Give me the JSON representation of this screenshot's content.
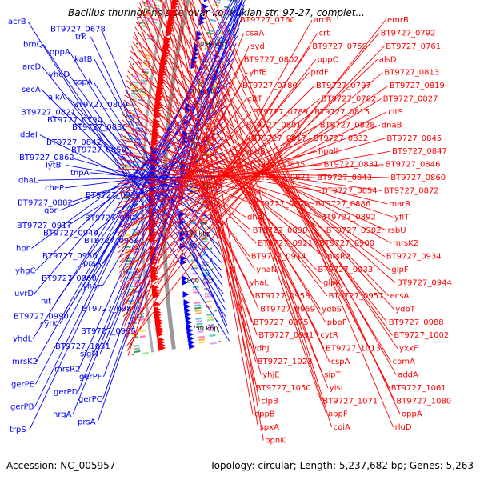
{
  "header": {
    "title": "Bacillus thuringiensis serovar konkukian str. 97-27, complet..."
  },
  "footer": {
    "accession": "Accession: NC_005957",
    "stats": "Topology: circular; Length: 5,237,682 bp; Genes: 5,263"
  },
  "colors": {
    "forward_strand": "#ff0000",
    "reverse_strand": "#0000ff",
    "backbone": "#999999",
    "tick_dots": "#2f8f2f"
  },
  "ticks": [
    "750 kbp",
    "800 kbp",
    "850 kbp",
    "900 kbp",
    "950 kbp",
    "1000 kbp",
    "1050 kbp",
    "1100 kbp",
    "1150 kbp"
  ],
  "left_labels": [
    "acrB",
    "BT9727_0678",
    "trk",
    "brnQ",
    "oppA",
    "katB",
    "arcD",
    "yheD",
    "sspA",
    "secA",
    "alkA",
    "BT9727_0809",
    "BT9727_0821",
    "BT9727_0790",
    "BT9727_0836",
    "ddeI",
    "BT9727_0842",
    "BT9727_0850",
    "BT9727_0862",
    "lytB",
    "tnpA",
    "dhaL",
    "cheP",
    "BT9727_0930",
    "BT9727_0882",
    "qor",
    "BT9727_0905",
    "BT9727_0917",
    "BT9727_0949",
    "BT9727_0952",
    "hpr",
    "BT9727_0956",
    "prsA",
    "yhgC",
    "BT9727_0960",
    "yhaH",
    "uvrD",
    "hit",
    "BT9727_0987",
    "BT9727_0990",
    "cytK",
    "BT9727_0995",
    "yhdL",
    "BT9727_1031",
    "sigM",
    "mrsK2",
    "mrsR2",
    "gerPF",
    "gerPE",
    "gerPD",
    "gerPC",
    "gerPB",
    "nrgA",
    "prsA",
    "trpS"
  ],
  "right_labels": [
    "BT9727_0760",
    "arcB",
    "emrB",
    "csaA",
    "crt",
    "BT9727_0792",
    "syd",
    "BT9727_0759",
    "BT9727_0761",
    "BT9727_0802",
    "oppC",
    "alsD",
    "yhfE",
    "prdF",
    "BT9727_0813",
    "BT9727_0780",
    "BT9727_0797",
    "BT9727_0819",
    "citT",
    "BT9727_0782",
    "BT9727_0827",
    "BT9727_0789",
    "BT9727_0815",
    "citS",
    "BT9727_0801",
    "BT9727_0828",
    "dnaB",
    "BT9727_0817",
    "BT9727_0832",
    "BT9727_0845",
    "oppB",
    "hpall",
    "BT9727_0847",
    "BT9727_0835",
    "BT9727_0831",
    "BT9727_0846",
    "BT9727_0871",
    "BT9727_0843",
    "BT9727_0860",
    "bglH",
    "BT9727_0854",
    "BT9727_0872",
    "BT9727_0870",
    "BT9727_0886",
    "marR",
    "dhaL",
    "BT9727_0892",
    "yflT",
    "BT9727_0890",
    "BT9727_0902",
    "rsbU",
    "BT9727_0921",
    "BT9727_0900",
    "mrsK2",
    "BT9727_0914",
    "mrsR2",
    "BT9727_0934",
    "yhaN",
    "BT9727_0933",
    "glpF",
    "yhaL",
    "glpK",
    "BT9727_0944",
    "BT9727_0958",
    "BT9727_0957",
    "ecsA",
    "BT9727_0959",
    "ydbS",
    "ydbT",
    "BT9727_0975",
    "pbpF",
    "BT9727_0988",
    "BT9727_0991",
    "cytR",
    "BT9727_1002",
    "ydhJ",
    "BT9727_1013",
    "yxxF",
    "BT9727_1023",
    "cspA",
    "comA",
    "yhjE",
    "sipT",
    "addA",
    "BT9727_1050",
    "yisL",
    "BT9727_1061",
    "clpB",
    "BT9727_1071",
    "BT9727_1080",
    "oppB",
    "oppF",
    "oppA",
    "spxA",
    "coiA",
    "rluD",
    "ppnK"
  ]
}
